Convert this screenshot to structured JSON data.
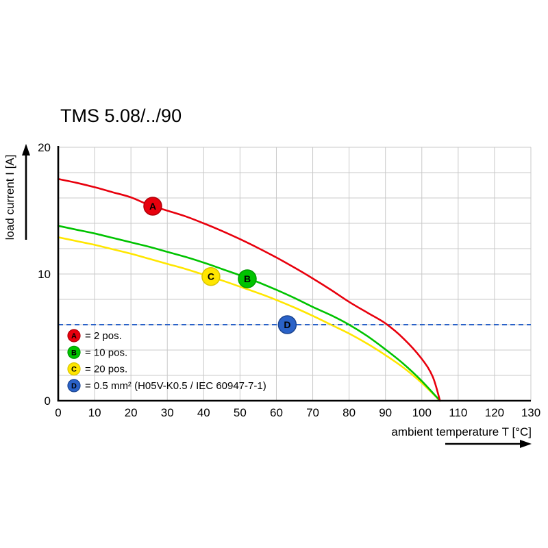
{
  "title": "TMS 5.08/../90",
  "chart_data": {
    "type": "line",
    "title": "TMS 5.08/../90",
    "xlabel": "ambient temperature T [°C]",
    "ylabel": "load current I [A]",
    "xlim": [
      0,
      130
    ],
    "ylim": [
      0,
      20
    ],
    "x_ticks": [
      0,
      10,
      20,
      30,
      40,
      50,
      60,
      70,
      80,
      90,
      100,
      110,
      120,
      130
    ],
    "y_ticks": [
      0,
      10,
      20
    ],
    "y_grid_step": 2,
    "grid": true,
    "legend_position": "bottom-left-inside",
    "series": [
      {
        "name": "A",
        "label": "= 2 pos.",
        "color": "#e8000d",
        "ring": "#b00009",
        "marker_at": [
          26,
          15.35
        ],
        "points": [
          [
            0,
            17.5
          ],
          [
            5,
            17.2
          ],
          [
            10,
            16.85
          ],
          [
            15,
            16.45
          ],
          [
            20,
            16.05
          ],
          [
            25,
            15.45
          ],
          [
            30,
            15.0
          ],
          [
            35,
            14.55
          ],
          [
            40,
            14.0
          ],
          [
            45,
            13.4
          ],
          [
            50,
            12.75
          ],
          [
            55,
            12.05
          ],
          [
            60,
            11.3
          ],
          [
            65,
            10.5
          ],
          [
            70,
            9.65
          ],
          [
            75,
            8.75
          ],
          [
            80,
            7.8
          ],
          [
            85,
            6.95
          ],
          [
            90,
            6.1
          ],
          [
            95,
            4.9
          ],
          [
            100,
            3.3
          ],
          [
            103,
            1.9
          ],
          [
            105,
            0
          ]
        ]
      },
      {
        "name": "B",
        "label": "= 10 pos.",
        "color": "#00c300",
        "ring": "#009a00",
        "marker_at": [
          52,
          9.62
        ],
        "points": [
          [
            0,
            13.8
          ],
          [
            5,
            13.5
          ],
          [
            10,
            13.2
          ],
          [
            15,
            12.85
          ],
          [
            20,
            12.5
          ],
          [
            25,
            12.15
          ],
          [
            30,
            11.75
          ],
          [
            35,
            11.35
          ],
          [
            40,
            10.9
          ],
          [
            45,
            10.4
          ],
          [
            50,
            9.9
          ],
          [
            55,
            9.35
          ],
          [
            60,
            8.75
          ],
          [
            65,
            8.1
          ],
          [
            70,
            7.4
          ],
          [
            75,
            6.75
          ],
          [
            80,
            6.0
          ],
          [
            85,
            5.1
          ],
          [
            90,
            4.05
          ],
          [
            95,
            2.9
          ],
          [
            100,
            1.55
          ],
          [
            105,
            0
          ]
        ]
      },
      {
        "name": "C",
        "label": "= 20 pos.",
        "color": "#ffe600",
        "ring": "#d8c400",
        "marker_at": [
          42,
          9.8
        ],
        "points": [
          [
            0,
            12.9
          ],
          [
            5,
            12.6
          ],
          [
            10,
            12.3
          ],
          [
            15,
            11.95
          ],
          [
            20,
            11.6
          ],
          [
            25,
            11.2
          ],
          [
            30,
            10.8
          ],
          [
            35,
            10.4
          ],
          [
            40,
            9.95
          ],
          [
            45,
            9.5
          ],
          [
            50,
            9.0
          ],
          [
            55,
            8.5
          ],
          [
            60,
            7.95
          ],
          [
            65,
            7.35
          ],
          [
            70,
            6.7
          ],
          [
            75,
            6.0
          ],
          [
            80,
            5.3
          ],
          [
            85,
            4.5
          ],
          [
            90,
            3.6
          ],
          [
            95,
            2.6
          ],
          [
            100,
            1.4
          ],
          [
            105,
            0
          ]
        ]
      }
    ],
    "reference_line": {
      "name": "D",
      "label": "= 0.5 mm² (H05V-K0.5 / IEC 60947-7-1)",
      "color": "#2a62c8",
      "ring": "#1c4590",
      "y": 6,
      "style": "dashed",
      "marker_at": [
        63,
        6
      ]
    },
    "legend": [
      {
        "letter": "A",
        "label": "= 2 pos.",
        "color": "#e8000d",
        "ring": "#b00009"
      },
      {
        "letter": "B",
        "label": "= 10 pos.",
        "color": "#00c300",
        "ring": "#009a00"
      },
      {
        "letter": "C",
        "label": "= 20 pos.",
        "color": "#ffe600",
        "ring": "#d8c400"
      },
      {
        "letter": "D",
        "label": "= 0.5 mm² (H05V-K0.5 / IEC 60947-7-1)",
        "color": "#2a62c8",
        "ring": "#1c4590"
      }
    ]
  }
}
